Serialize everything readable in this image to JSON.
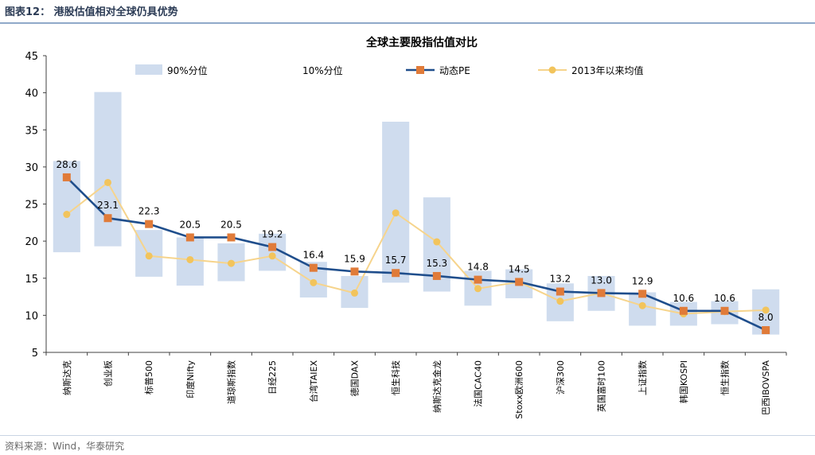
{
  "header": {
    "title": "图表12： 港股估值相对全球仍具优势"
  },
  "footer": {
    "source": "资料来源：Wind，华泰研究"
  },
  "colors": {
    "band": "#cfdcee",
    "pe_line": "#1f4e8c",
    "pe_marker": "#e07b39",
    "avg_line": "#f6d48c",
    "avg_marker": "#f2c45c"
  },
  "chart_data": {
    "type": "line",
    "title": "全球主要股指估值对比",
    "xlabel": "",
    "ylabel": "",
    "ylim": [
      5,
      45
    ],
    "yticks": [
      "5",
      "10",
      "15",
      "20",
      "25",
      "30",
      "35",
      "40",
      "45"
    ],
    "grid": false,
    "legend_position": "top",
    "legend": {
      "band": "90%分位",
      "band_low": "10%分位",
      "pe": "动态PE",
      "avg": "2013年以来均值"
    },
    "categories": [
      "纳斯达克",
      "创业板",
      "标普500",
      "印度Nifty",
      "道琼斯指数",
      "日经225",
      "台湾TAIEX",
      "德国DAX",
      "恒生科技",
      "纳斯达克金龙",
      "法国CAC40",
      "Stoxx欧洲600",
      "沪深300",
      "英国富时100",
      "上证指数",
      "韩国KOSPI",
      "恒生指数",
      "巴西IBOVSPA"
    ],
    "series": [
      {
        "name": "动态PE",
        "values": [
          28.6,
          23.1,
          22.3,
          20.5,
          20.5,
          19.2,
          16.4,
          15.9,
          15.7,
          15.3,
          14.8,
          14.5,
          13.2,
          13.0,
          12.9,
          10.6,
          10.6,
          8.0
        ]
      },
      {
        "name": "2013年以来均值",
        "values": [
          23.6,
          27.9,
          18.0,
          17.5,
          17.0,
          18.0,
          14.4,
          13.0,
          23.8,
          19.9,
          13.6,
          14.5,
          11.9,
          13.0,
          11.3,
          10.2,
          10.5,
          10.7
        ]
      },
      {
        "name": "90%分位",
        "values": [
          30.8,
          40.1,
          21.5,
          20.5,
          19.7,
          21.0,
          17.2,
          15.3,
          36.1,
          25.9,
          16.0,
          16.2,
          14.3,
          15.3,
          13.1,
          11.8,
          11.9,
          13.5
        ]
      },
      {
        "name": "10%分位",
        "values": [
          18.5,
          19.3,
          15.2,
          14.0,
          14.6,
          16.0,
          12.4,
          11.0,
          14.4,
          13.2,
          11.3,
          12.3,
          9.2,
          10.6,
          8.6,
          8.6,
          8.8,
          7.4
        ]
      }
    ],
    "data_labels": [
      "28.6",
      "23.1",
      "22.3",
      "20.5",
      "20.5",
      "19.2",
      "16.4",
      "15.9",
      "15.7",
      "15.3",
      "14.8",
      "14.5",
      "13.2",
      "13.0",
      "12.9",
      "10.6",
      "10.6",
      "8.0"
    ]
  }
}
